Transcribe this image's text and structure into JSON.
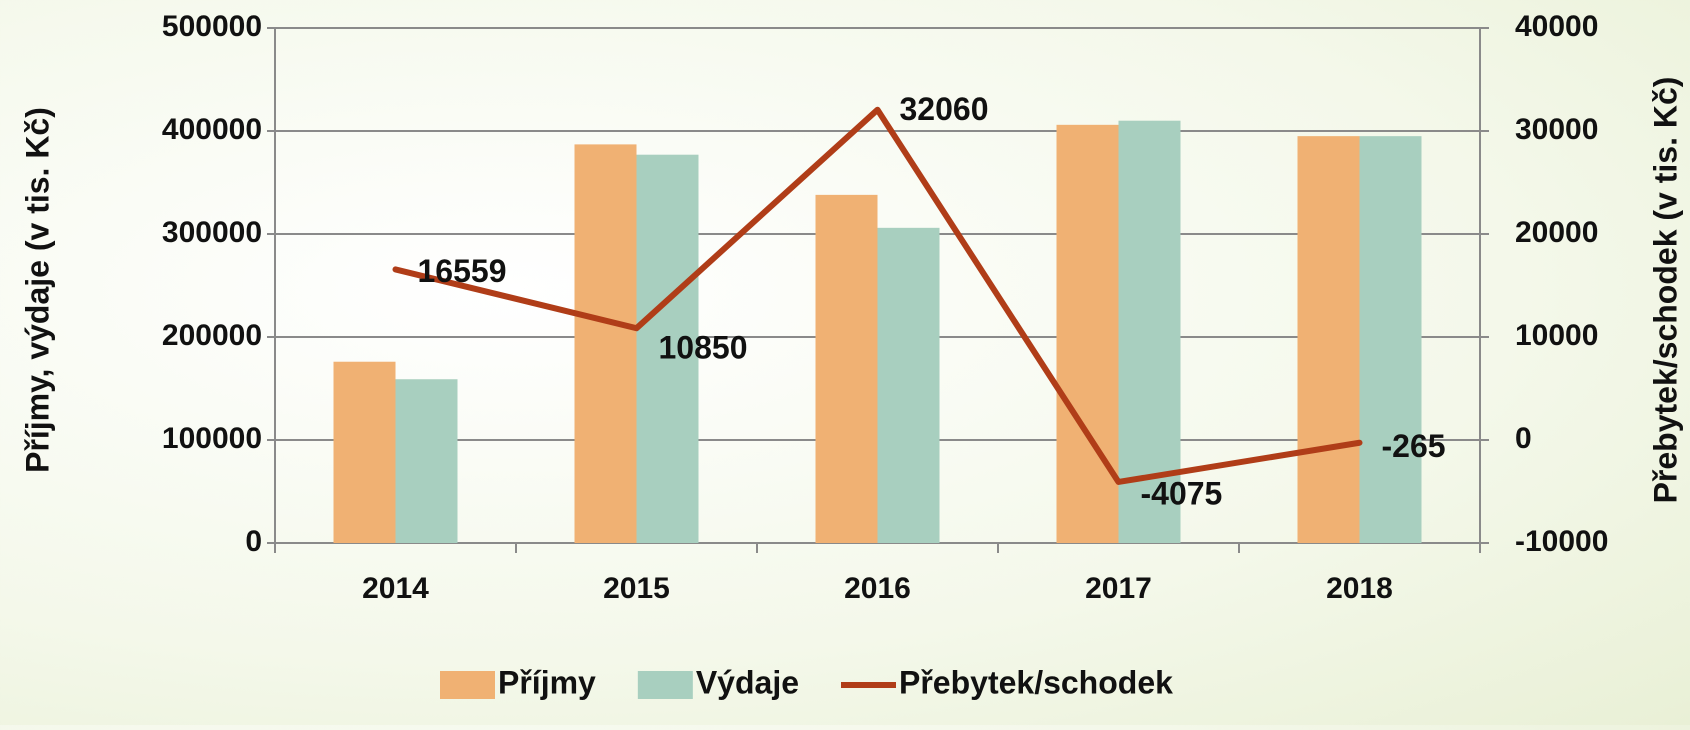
{
  "chart_data": {
    "type": "bar_line",
    "categories": [
      "2014",
      "2015",
      "2016",
      "2017",
      "2018"
    ],
    "series": [
      {
        "name": "Příjmy",
        "color": "#f0b173",
        "type": "bar",
        "values": [
          176000,
          387000,
          338000,
          406000,
          395000
        ]
      },
      {
        "name": "Výdaje",
        "color": "#a8cfbf",
        "type": "bar",
        "values": [
          159000,
          377000,
          306000,
          410000,
          395000
        ]
      },
      {
        "name": "Přebytek/schodek",
        "color": "#b03d18",
        "type": "line",
        "axis": "y2",
        "values": [
          16559,
          10850,
          32060,
          -4075,
          -265
        ]
      }
    ],
    "ylabel": "Příjmy, výdaje (v tis. Kč)",
    "y2label": "Přebytek/schodek (v tis. Kč)",
    "ylim": [
      0,
      500000
    ],
    "yticks": [
      0,
      100000,
      200000,
      300000,
      400000,
      500000
    ],
    "y2lim": [
      -10000,
      40000
    ],
    "y2ticks": [
      -10000,
      0,
      10000,
      20000,
      30000,
      40000
    ],
    "grid": true,
    "legend": "bottom"
  }
}
